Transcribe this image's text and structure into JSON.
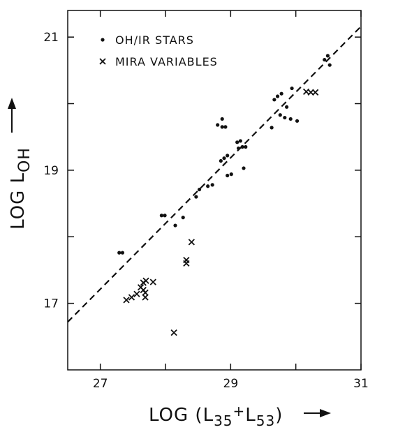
{
  "chart_data": {
    "type": "scatter",
    "xlabel": [
      "LOG (L",
      "35",
      "+",
      "L",
      "53",
      ")"
    ],
    "ylabel": [
      "LOG L",
      "OH"
    ],
    "xlim": [
      26.5,
      31
    ],
    "ylim": [
      16,
      21.4
    ],
    "xticks": [
      27,
      29,
      31
    ],
    "yticks": [
      17,
      19,
      21
    ],
    "xminorticks": [
      28,
      30
    ],
    "yminorticks": [
      18,
      20
    ],
    "fit_line": {
      "x": [
        26.5,
        31
      ],
      "y": [
        16.72,
        21.16
      ]
    },
    "series": [
      {
        "name": "OH/IR STARS",
        "marker": "dot",
        "color": "#111",
        "x": [
          27.29,
          27.34,
          27.94,
          27.99,
          28.15,
          28.27,
          28.47,
          28.52,
          28.65,
          28.72,
          28.8,
          28.87,
          28.87,
          28.92,
          28.85,
          28.9,
          28.95,
          28.95,
          29.01,
          29.1,
          29.15,
          29.12,
          29.18,
          29.23,
          29.2,
          29.67,
          29.72,
          29.63,
          29.76,
          29.78,
          29.83,
          29.86,
          29.92,
          29.94,
          30.02,
          30.44,
          30.49,
          30.52
        ],
        "values": [
          17.76,
          17.76,
          18.32,
          18.32,
          18.17,
          18.29,
          18.6,
          18.71,
          18.76,
          18.78,
          19.68,
          19.77,
          19.65,
          19.65,
          19.14,
          19.18,
          19.22,
          18.92,
          18.94,
          19.42,
          19.44,
          19.33,
          19.35,
          19.35,
          19.03,
          20.06,
          20.11,
          19.64,
          19.83,
          20.15,
          19.79,
          19.95,
          19.77,
          20.23,
          19.74,
          20.66,
          20.72,
          20.58
        ]
      },
      {
        "name": "MIRA VARIABLES",
        "marker": "cross",
        "color": "#111",
        "x": [
          27.4,
          27.48,
          27.56,
          27.62,
          27.66,
          27.69,
          27.7,
          27.66,
          27.69,
          27.81,
          28.13,
          28.32,
          28.32,
          28.4,
          30.16,
          30.23,
          30.3
        ],
        "values": [
          17.05,
          17.09,
          17.14,
          17.24,
          17.31,
          17.16,
          17.34,
          17.2,
          17.09,
          17.32,
          16.56,
          17.65,
          17.6,
          17.92,
          20.18,
          20.17,
          20.17
        ]
      }
    ]
  }
}
